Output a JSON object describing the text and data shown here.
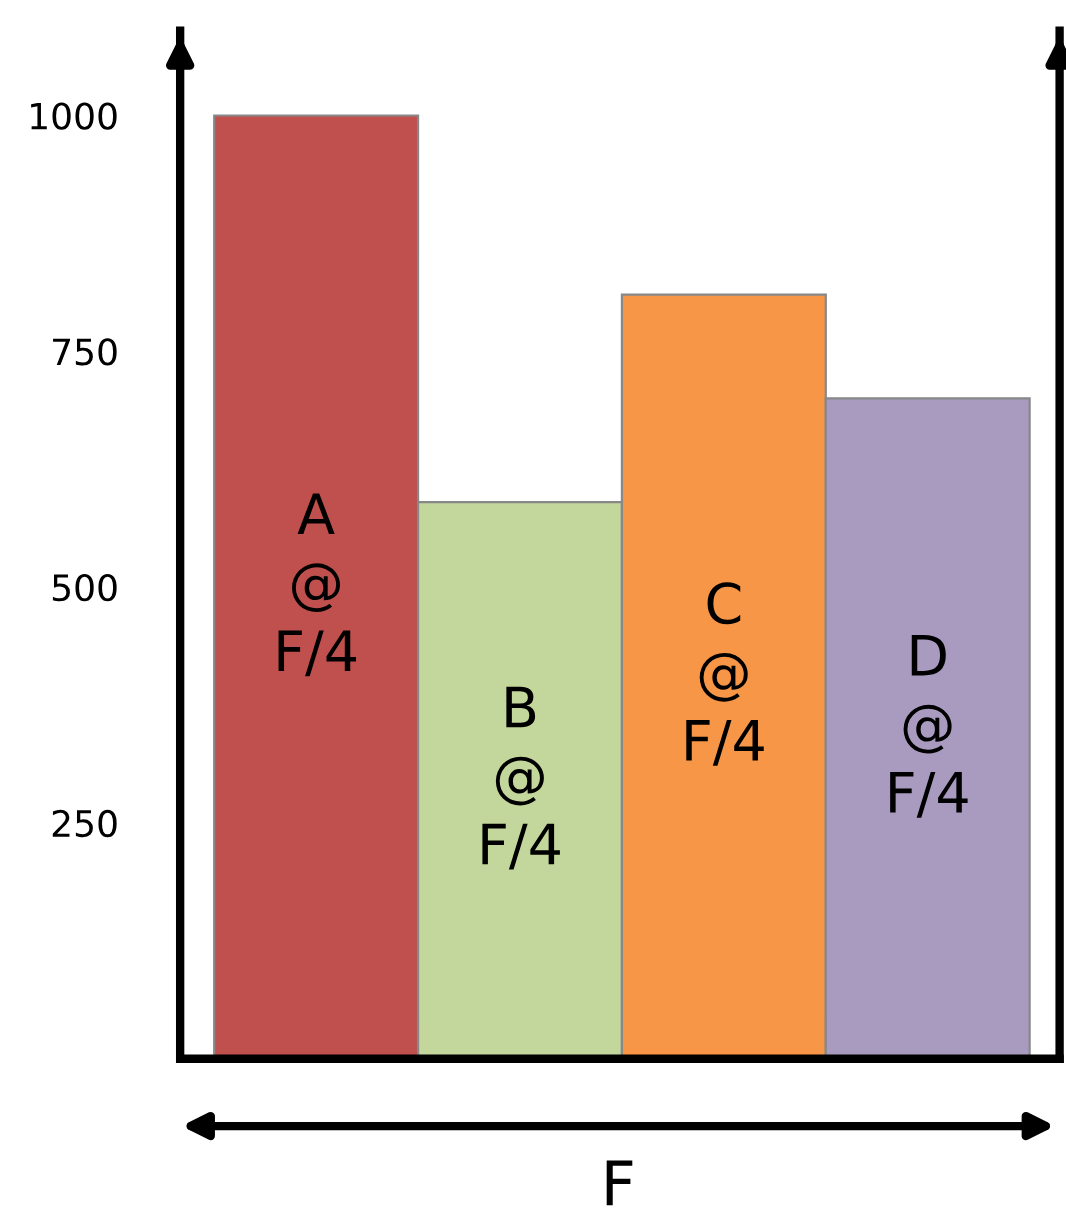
{
  "chart_data": {
    "type": "bar",
    "xlabel": "F",
    "categories": [
      "A\n@\nF/4",
      "B\n@\nF/4",
      "C\n@\nF/4",
      "D\n@\nF/4"
    ],
    "values": [
      1000,
      590,
      810,
      700
    ],
    "colors": [
      "#c0504d",
      "#c3d69b",
      "#f79646",
      "#a99bc0"
    ],
    "ylim": [
      0,
      1090
    ],
    "yticks": [
      250,
      500,
      750,
      1000
    ],
    "grid": false,
    "legend": false
  }
}
